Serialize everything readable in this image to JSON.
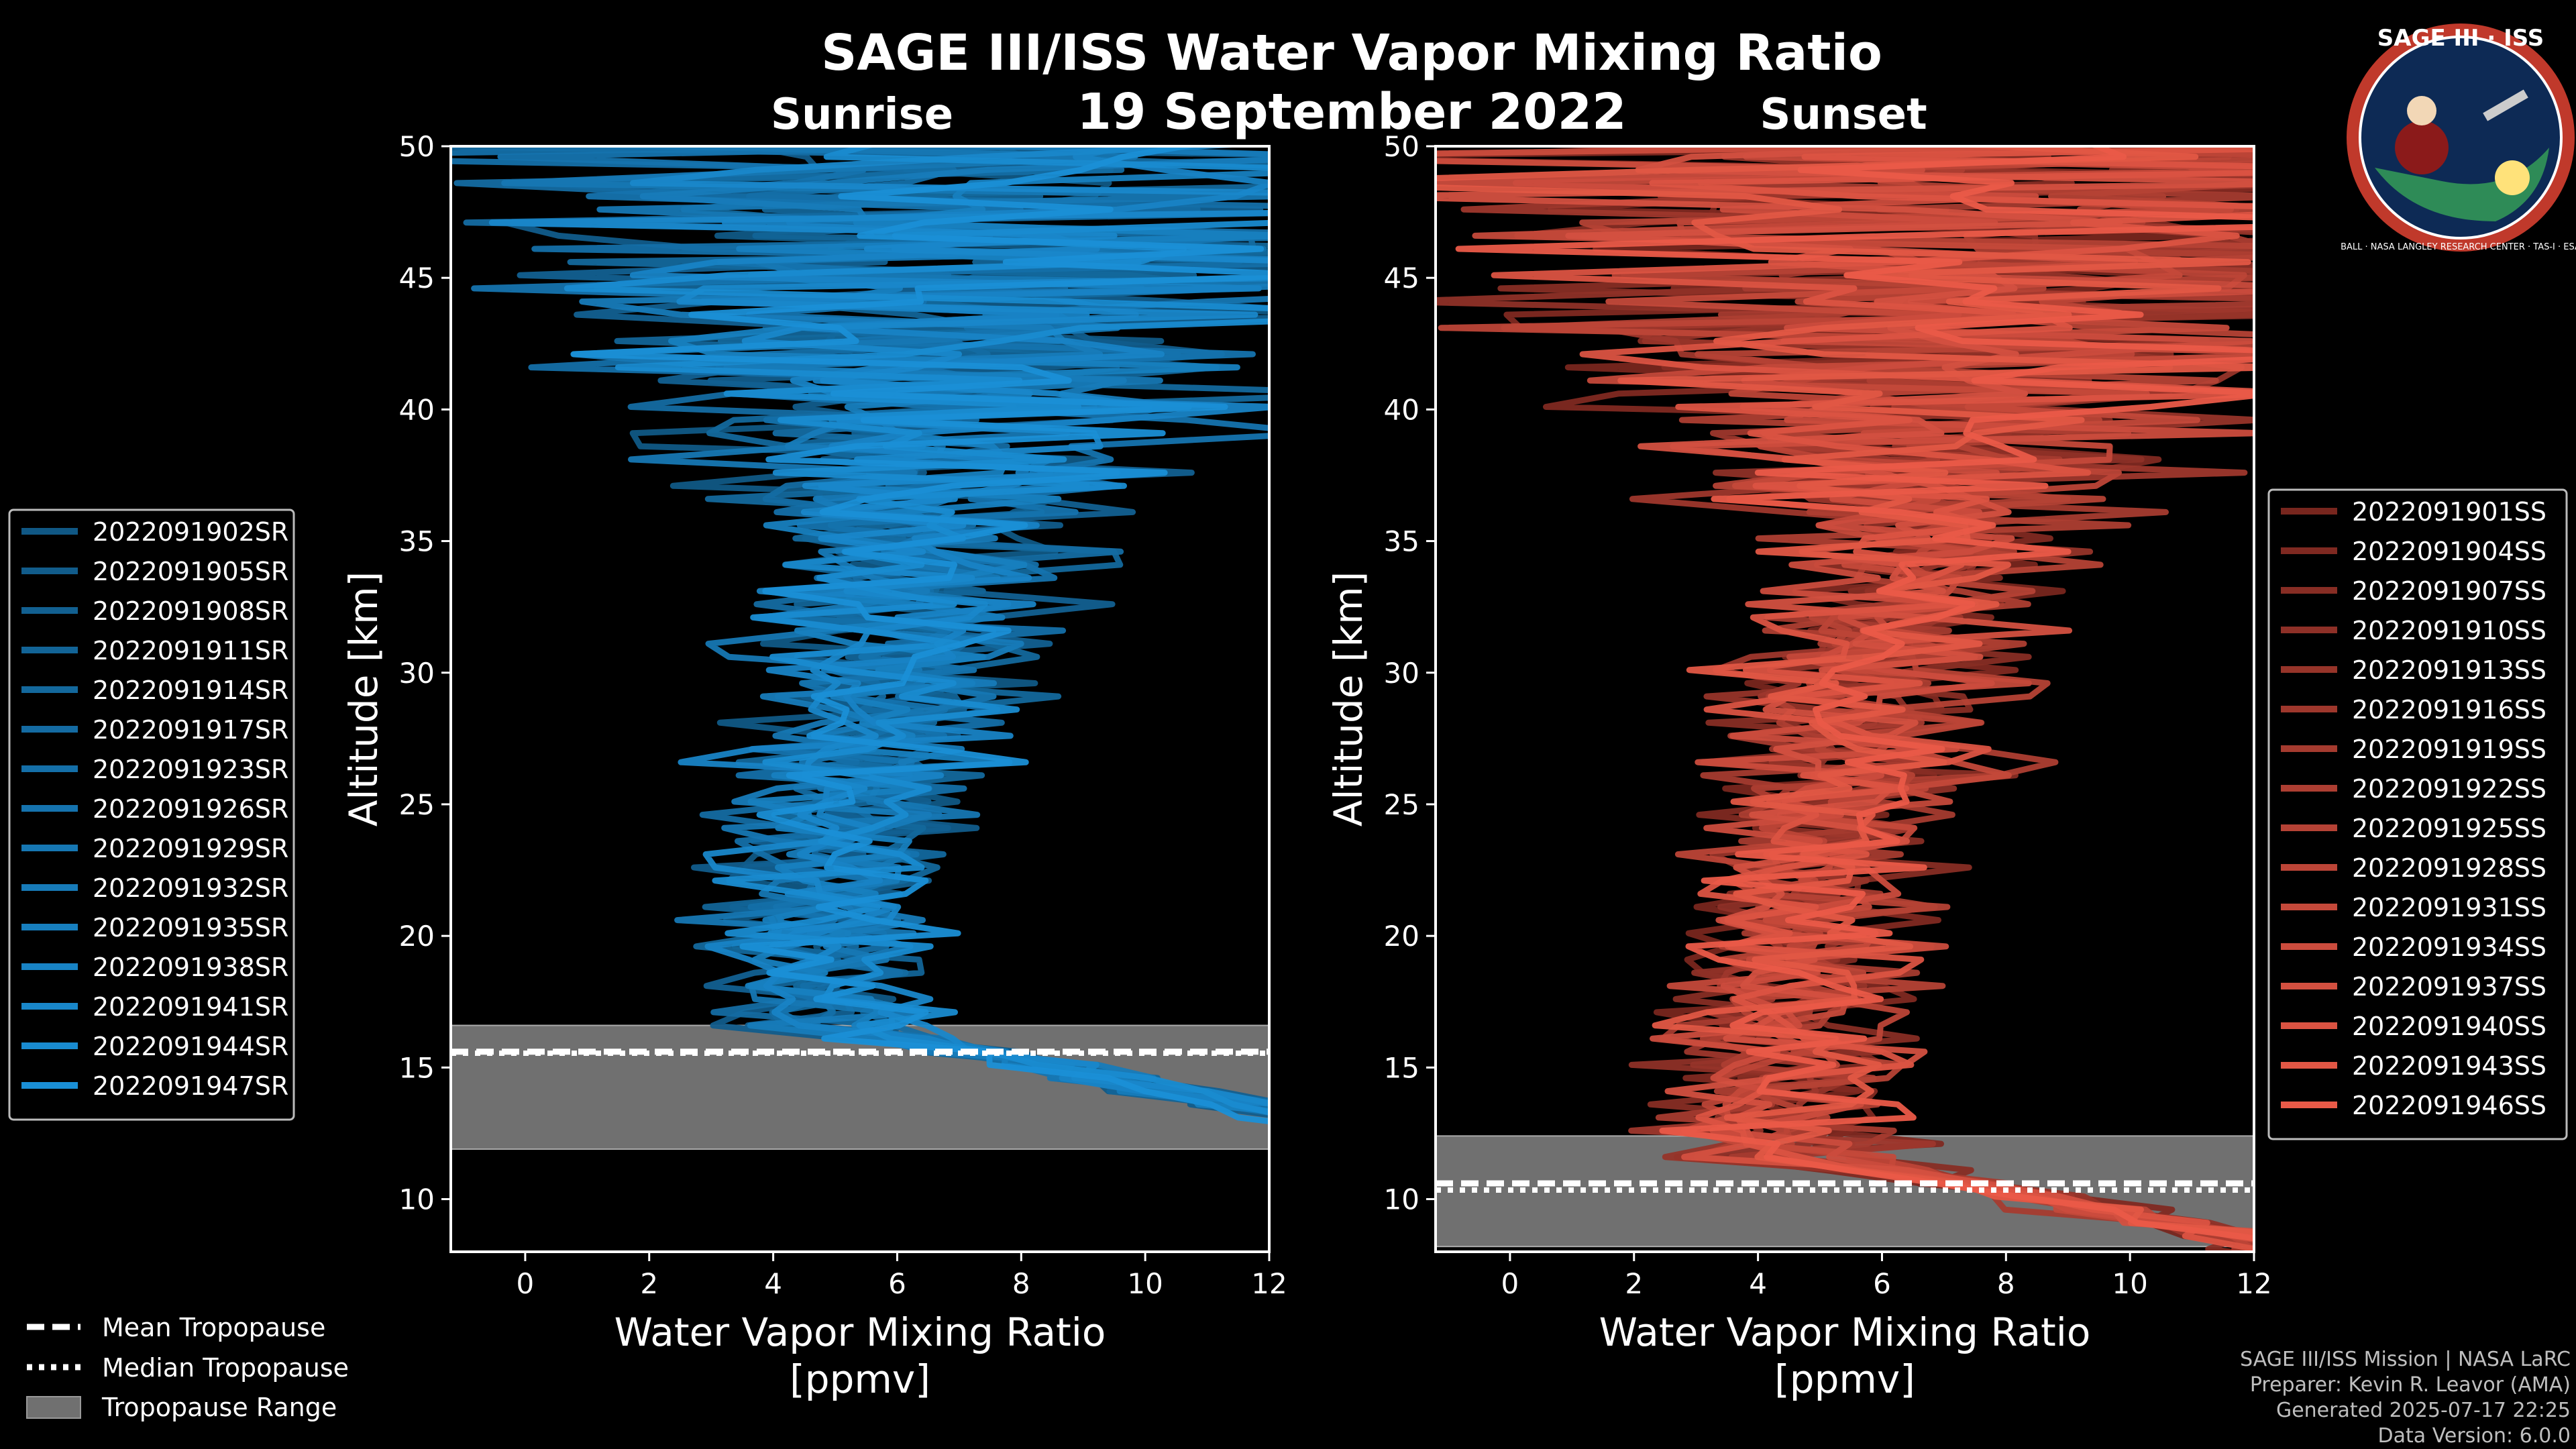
{
  "title": "SAGE III/ISS Water Vapor Mixing Ratio",
  "date": "19 September 2022",
  "logo": {
    "top": "SAGE III · ISS",
    "ring": "BALL · NASA LANGLEY RESEARCH CENTER · TAS-I · ESA"
  },
  "credits": [
    "SAGE III/ISS Mission | NASA LaRC",
    "Preparer: Kevin R. Leavor (AMA)",
    "Generated 2025-07-17 22:25",
    "Data Version: 6.0.0"
  ],
  "tropo_legend": [
    "Mean Tropopause",
    "Median Tropopause",
    "Tropopause Range"
  ],
  "colors": {
    "sunrise": "#1a8fd6",
    "sunset": "#ea5a48",
    "tropo_range": "#707070"
  },
  "chart_data": [
    {
      "type": "line",
      "title": "Sunrise",
      "xlabel": "Water Vapor Mixing Ratio\n[ppmv]",
      "ylabel": "Altitude [km]",
      "xlim": [
        -1.2,
        12
      ],
      "ylim": [
        8,
        50
      ],
      "xticks": [
        0,
        2,
        4,
        6,
        8,
        10,
        12
      ],
      "yticks": [
        10,
        15,
        20,
        25,
        30,
        35,
        40,
        45,
        50
      ],
      "tropopause": {
        "mean": 15.6,
        "median": 15.8,
        "range": [
          11.9,
          16.6
        ]
      },
      "series": [
        {
          "name": "2022091902SR"
        },
        {
          "name": "2022091905SR"
        },
        {
          "name": "2022091908SR"
        },
        {
          "name": "2022091911SR"
        },
        {
          "name": "2022091914SR"
        },
        {
          "name": "2022091917SR"
        },
        {
          "name": "2022091923SR"
        },
        {
          "name": "2022091926SR"
        },
        {
          "name": "2022091929SR"
        },
        {
          "name": "2022091932SR"
        },
        {
          "name": "2022091935SR"
        },
        {
          "name": "2022091938SR"
        },
        {
          "name": "2022091941SR"
        },
        {
          "name": "2022091944SR"
        },
        {
          "name": "2022091947SR"
        }
      ]
    },
    {
      "type": "line",
      "title": "Sunset",
      "xlabel": "Water Vapor Mixing Ratio\n[ppmv]",
      "ylabel": "Altitude [km]",
      "xlim": [
        -1.2,
        12
      ],
      "ylim": [
        8,
        50
      ],
      "xticks": [
        0,
        2,
        4,
        6,
        8,
        10,
        12
      ],
      "yticks": [
        10,
        15,
        20,
        25,
        30,
        35,
        40,
        45,
        50
      ],
      "tropopause": {
        "mean": 10.6,
        "median": 10.6,
        "range": [
          8.2,
          12.4
        ]
      },
      "series": [
        {
          "name": "2022091901SS"
        },
        {
          "name": "2022091904SS"
        },
        {
          "name": "2022091907SS"
        },
        {
          "name": "2022091910SS"
        },
        {
          "name": "2022091913SS"
        },
        {
          "name": "2022091916SS"
        },
        {
          "name": "2022091919SS"
        },
        {
          "name": "2022091922SS"
        },
        {
          "name": "2022091925SS"
        },
        {
          "name": "2022091928SS"
        },
        {
          "name": "2022091931SS"
        },
        {
          "name": "2022091934SS"
        },
        {
          "name": "2022091937SS"
        },
        {
          "name": "2022091940SS"
        },
        {
          "name": "2022091943SS"
        },
        {
          "name": "2022091946SS"
        }
      ]
    }
  ]
}
